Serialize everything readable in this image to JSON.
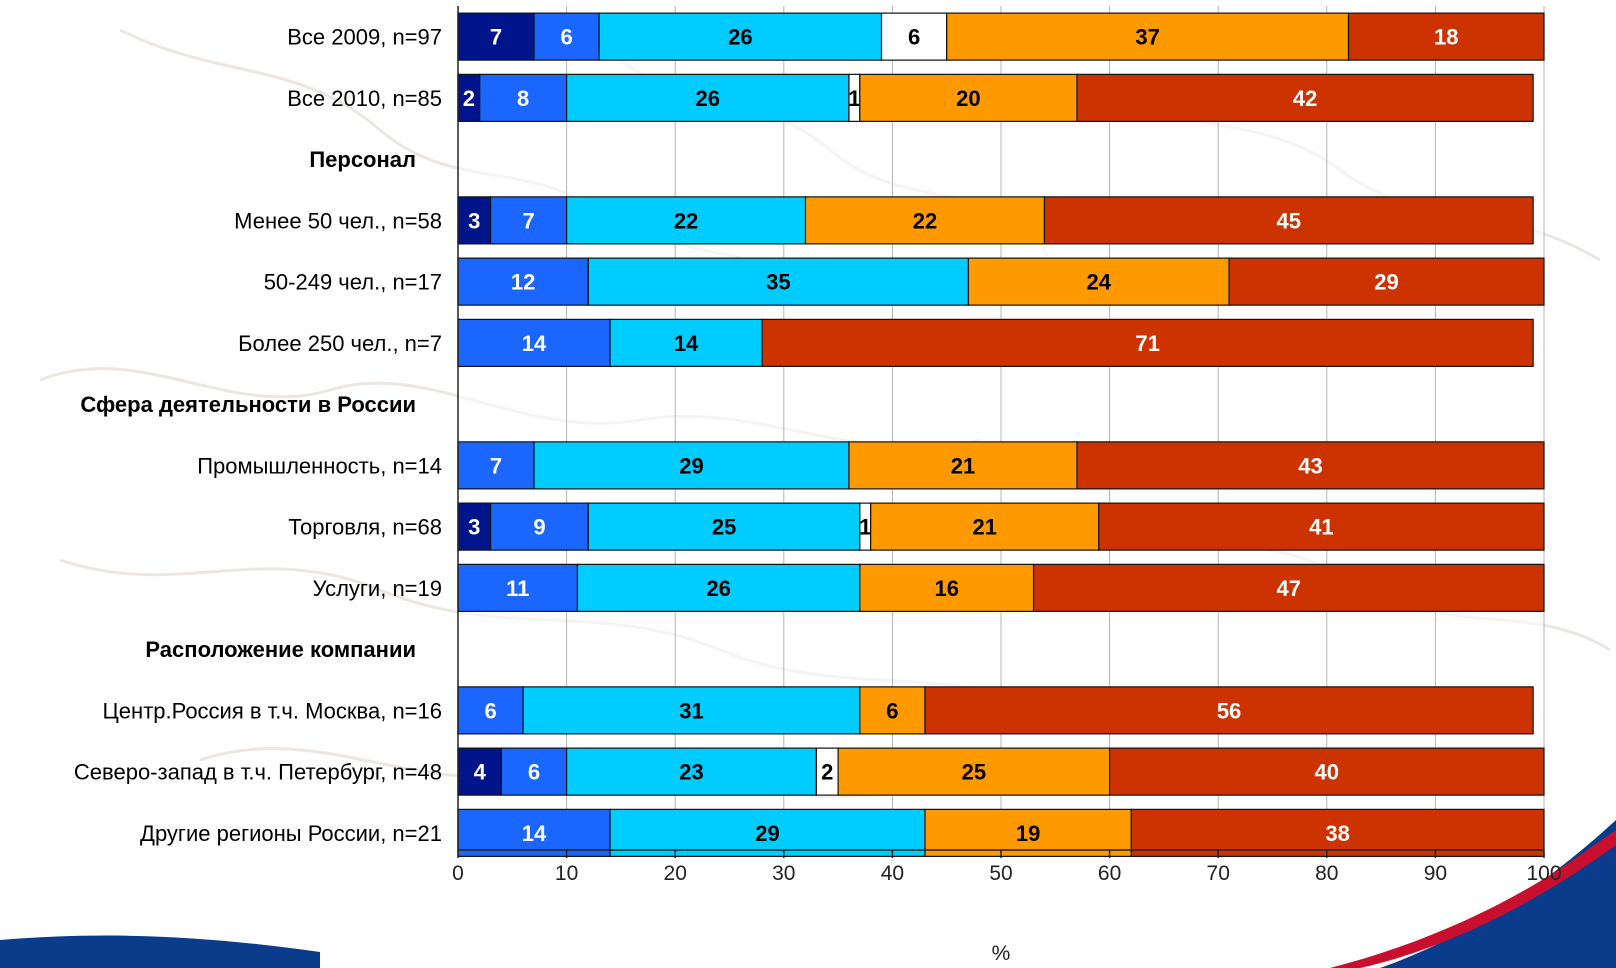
{
  "chart_data": {
    "type": "bar",
    "orientation": "horizontal",
    "stacked": true,
    "xlabel": "%",
    "xlim": [
      0,
      100
    ],
    "xticks": [
      0,
      10,
      20,
      30,
      40,
      50,
      60,
      70,
      80,
      90,
      100
    ],
    "grid": true,
    "legend": "none",
    "series_colors": [
      "#00148c",
      "#1a66ff",
      "#00ccff",
      "#ffffff",
      "#ff9900",
      "#cc3300"
    ],
    "label_colors": [
      "#ffffff",
      "#ffffff",
      "#000000",
      "#000000",
      "#000000",
      "#ffffff"
    ],
    "rows": [
      {
        "label": "Все 2009, n=97",
        "section": false,
        "values": [
          7,
          6,
          26,
          6,
          37,
          18
        ]
      },
      {
        "label": "Все 2010, n=85",
        "section": false,
        "values": [
          2,
          8,
          26,
          1,
          20,
          42
        ]
      },
      {
        "label": "Персонал",
        "section": true,
        "values": []
      },
      {
        "label": "Менее 50 чел., n=58",
        "section": false,
        "values": [
          3,
          7,
          22,
          0,
          22,
          45
        ]
      },
      {
        "label": "50-249 чел., n=17",
        "section": false,
        "values": [
          0,
          12,
          35,
          0,
          24,
          29
        ]
      },
      {
        "label": "Более 250 чел., n=7",
        "section": false,
        "values": [
          0,
          14,
          14,
          0,
          0,
          71
        ]
      },
      {
        "label": "Сфера деятельности в России",
        "section": true,
        "values": []
      },
      {
        "label": "Промышленность, n=14",
        "section": false,
        "values": [
          0,
          7,
          29,
          0,
          21,
          43
        ]
      },
      {
        "label": "Торговля, n=68",
        "section": false,
        "values": [
          3,
          9,
          25,
          1,
          21,
          41
        ]
      },
      {
        "label": "Услуги, n=19",
        "section": false,
        "values": [
          0,
          11,
          26,
          0,
          16,
          47
        ]
      },
      {
        "label": "Расположение компании",
        "section": true,
        "values": []
      },
      {
        "label": "Центр.Россия в т.ч. Москва, n=16",
        "section": false,
        "values": [
          0,
          6,
          31,
          0,
          6,
          56
        ]
      },
      {
        "label": "Северо-запад в т.ч. Петербург, n=48",
        "section": false,
        "values": [
          4,
          6,
          23,
          2,
          25,
          40
        ]
      },
      {
        "label": "Другие регионы России, n=21",
        "section": false,
        "values": [
          0,
          14,
          29,
          0,
          19,
          38
        ]
      }
    ]
  }
}
